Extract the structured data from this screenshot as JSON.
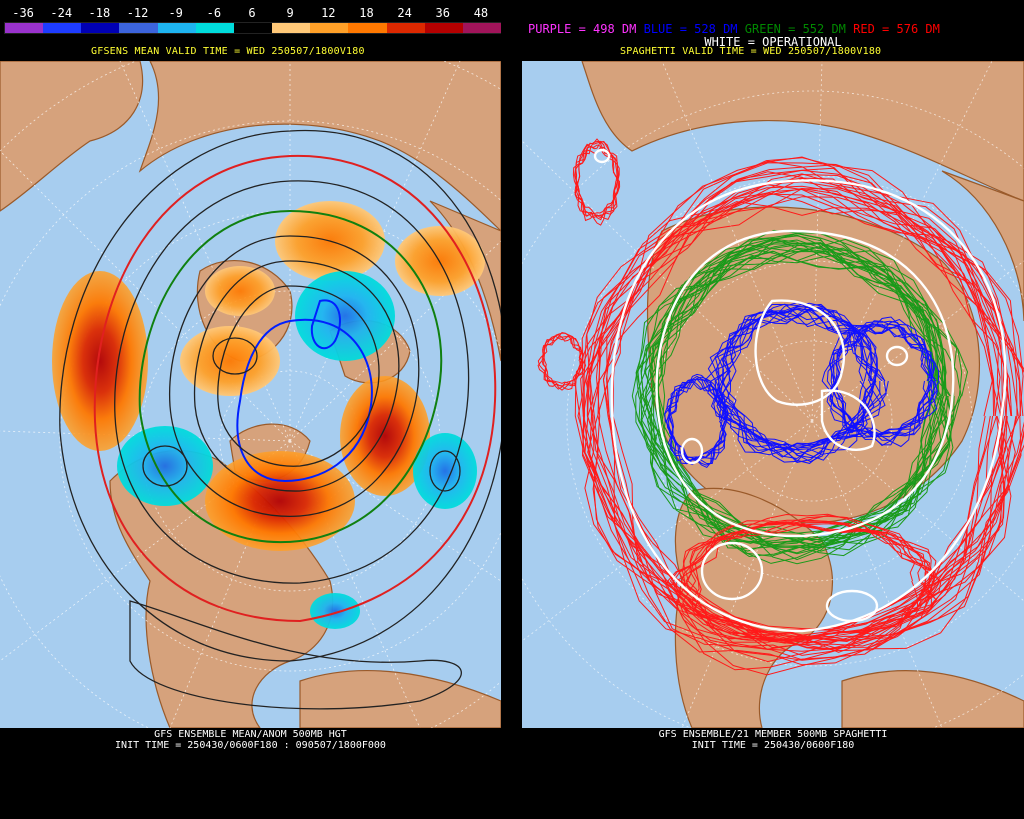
{
  "left": {
    "colorbar": {
      "labels": [
        "-36",
        "-24",
        "-18",
        "-12",
        "-9",
        "-6",
        "6",
        "9",
        "12",
        "18",
        "24",
        "36",
        "48"
      ],
      "colors": [
        "#9932cc",
        "#1e3cff",
        "#0000b4",
        "#3c64dc",
        "#1eb4f0",
        "#00dcdc",
        "#000000",
        "#ffc878",
        "#ffa028",
        "#ff7800",
        "#dc2800",
        "#b40000",
        "#a0145a"
      ]
    },
    "subtitle": "GFSENS MEAN VALID TIME = WED 250507/1800V180",
    "footer_line1": "GFS ENSEMBLE MEAN/ANOM 500MB HGT",
    "footer_line2": "INIT TIME = 250430/0600F180 : 090507/1800F000"
  },
  "right": {
    "legend": [
      {
        "text": "PURPLE = 498 DM",
        "color": "#ff33ff"
      },
      {
        "text": "BLUE = 528 DM",
        "color": "#0000ff"
      },
      {
        "text": "GREEN = 552 DM",
        "color": "#008800"
      },
      {
        "text": "RED = 576 DM",
        "color": "#ff0000"
      }
    ],
    "legend_white": "WHITE = OPERATIONAL",
    "subtitle": "SPAGHETTI VALID TIME = WED 250507/1800V180",
    "footer_line1": "GFS ENSEMBLE/21 MEMBER 500MB SPAGHETTI",
    "footer_line2": "INIT TIME = 250430/0600F180"
  },
  "colors": {
    "ocean": "#a7cdef",
    "land": "#d6a27c",
    "coast": "#9a5a2a",
    "grid": "#ffffff"
  }
}
